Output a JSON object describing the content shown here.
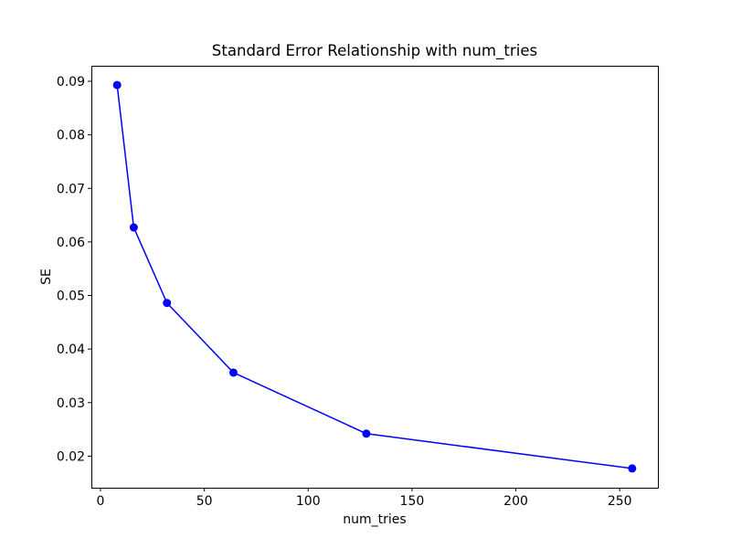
{
  "figure": {
    "background": "#ffffff",
    "text_color": "#000000",
    "spine_color": "#000000"
  },
  "chart_data": {
    "type": "line",
    "title": "Standard Error Relationship with num_tries",
    "xlabel": "num_tries",
    "ylabel": "SE",
    "x": [
      8,
      16,
      32,
      64,
      128,
      256
    ],
    "y": [
      0.0893,
      0.0627,
      0.0486,
      0.0356,
      0.0242,
      0.0177
    ],
    "series_color": "#0000ff",
    "marker": "circle",
    "line_width": 1.5,
    "marker_radius": 4.5,
    "xlim": [
      -4.4,
      268.4
    ],
    "ylim": [
      0.0141,
      0.0929
    ],
    "xticks": [
      0,
      50,
      100,
      150,
      200,
      250
    ],
    "yticks": [
      0.02,
      0.03,
      0.04,
      0.05,
      0.06,
      0.07,
      0.08,
      0.09
    ],
    "ytick_decimals": 2,
    "grid": false,
    "legend": null
  }
}
